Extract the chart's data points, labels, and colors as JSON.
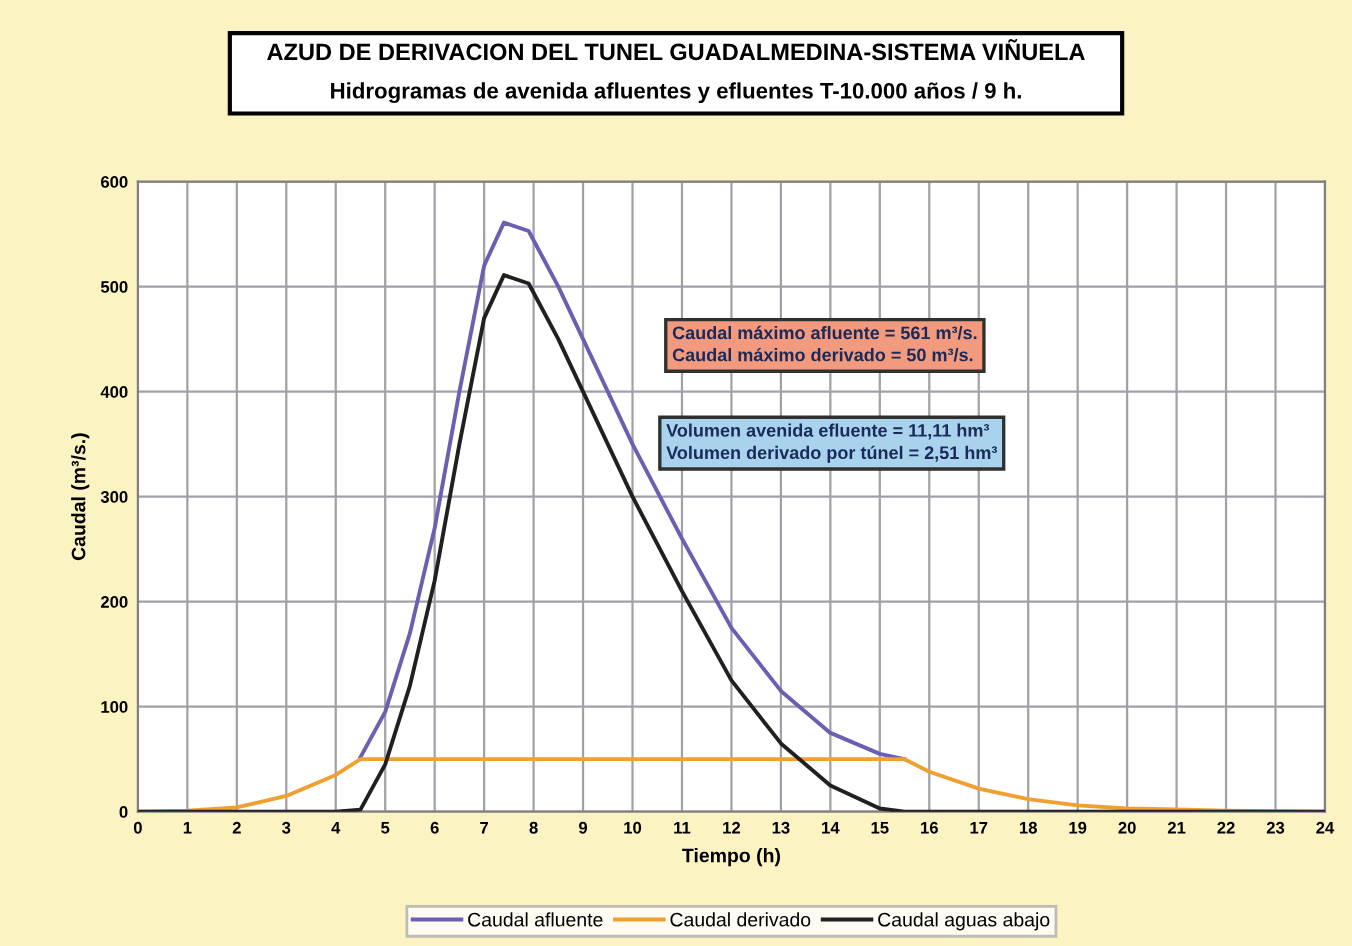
{
  "chart_data": {
    "type": "line",
    "title": "AZUD DE DERIVACION DEL TUNEL GUADALMEDINA-SISTEMA VIÑUELA",
    "subtitle": "Hidrogramas de avenida afluentes y efluentes T-10.000 años / 9 h.",
    "xlabel": "Tiempo (h)",
    "ylabel": "Caudal (m³/s.)",
    "xlim": [
      0,
      24
    ],
    "ylim": [
      0,
      600
    ],
    "xticks": [
      0,
      1,
      2,
      3,
      4,
      5,
      6,
      7,
      8,
      9,
      10,
      11,
      12,
      13,
      14,
      15,
      16,
      17,
      18,
      19,
      20,
      21,
      22,
      23,
      24
    ],
    "yticks": [
      0,
      100,
      200,
      300,
      400,
      500,
      600
    ],
    "grid": true,
    "legend": "bottom",
    "marker": "none",
    "line_style": "solid",
    "annotations": [
      "Caudal máximo afluente = 561 m³/s.\nCaudal máximo derivado = 50 m³/s.",
      "Volumen avenida efluente = 11,11 hm³\nVolumen derivado por túnel = 2,51 hm³"
    ],
    "series": [
      {
        "name": "Caudal afluente",
        "color": "#6a5fb0",
        "x": [
          4.5,
          5,
          5.5,
          6,
          6.5,
          7,
          7.4,
          7.9,
          8.5,
          9,
          10,
          11,
          12,
          13,
          14,
          15,
          15.5
        ],
        "values": [
          52,
          95,
          170,
          270,
          400,
          520,
          561,
          553,
          500,
          450,
          350,
          260,
          175,
          115,
          75,
          55,
          50
        ]
      },
      {
        "name": "Caudal derivado",
        "color": "#f0a030",
        "x": [
          0,
          1,
          2,
          3,
          4,
          4.5,
          15.5,
          16,
          17,
          18,
          19,
          20,
          21,
          22,
          24
        ],
        "values": [
          0,
          1,
          4,
          15,
          35,
          50,
          50,
          38,
          22,
          12,
          6,
          3,
          2,
          1,
          0
        ]
      },
      {
        "name": "Caudal aguas abajo",
        "color": "#202020",
        "x": [
          0,
          4,
          4.5,
          5,
          5.5,
          6,
          6.5,
          7,
          7.4,
          7.9,
          8.5,
          9,
          10,
          11,
          12,
          13,
          14,
          15,
          15.5,
          24
        ],
        "values": [
          0,
          0,
          2,
          45,
          120,
          220,
          350,
          470,
          511,
          503,
          450,
          400,
          300,
          210,
          125,
          65,
          25,
          3,
          0,
          0
        ]
      }
    ]
  }
}
